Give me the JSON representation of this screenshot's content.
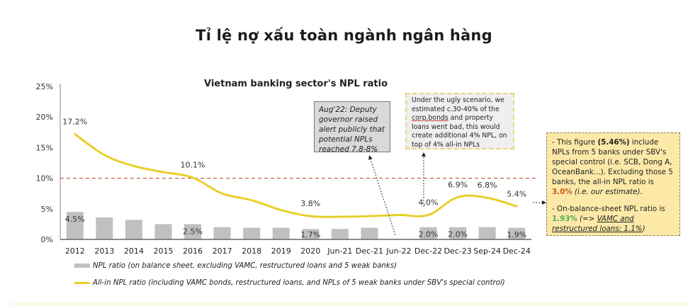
{
  "page_title": "Tỉ lệ nợ xấu toàn ngành ngân hàng",
  "chart_data": {
    "type": "bar+line",
    "title": "Vietnam banking sector's NPL ratio",
    "xlabel": "",
    "ylabel": "",
    "ylim": [
      0,
      25
    ],
    "yticks": [
      "0%",
      "5%",
      "10%",
      "15%",
      "20%",
      "25%"
    ],
    "categories": [
      "2012",
      "2013",
      "2014",
      "2015",
      "2016",
      "2017",
      "2018",
      "2019",
      "2020",
      "Jun-21",
      "Dec-21",
      "Jun-22",
      "Dec-22",
      "Dec-23",
      "Sep-24",
      "Dec-24"
    ],
    "series": [
      {
        "name": "NPL ratio (on balance sheet, excluding VAMC, restructured loans and 5 weak banks)",
        "type": "bar",
        "color": "#c0c0c0",
        "values": [
          4.5,
          3.6,
          3.2,
          2.5,
          2.5,
          2.0,
          1.9,
          1.9,
          1.7,
          1.7,
          1.9,
          null,
          2.0,
          2.0,
          2.0,
          1.9
        ],
        "data_labels": {
          "2012": "4.5%",
          "2016": "2.5%",
          "2020": "1.7%",
          "Dec-22": "2.0%",
          "Dec-23": "2.0%",
          "Dec-24": "1.9%"
        }
      },
      {
        "name": "All-in NPL ratio (including VAMC bonds, restructured loans, and NPLs of 5 weak banks under SBV's special control)",
        "type": "line",
        "color": "#e9cf2a",
        "values": [
          17.2,
          13.8,
          12.0,
          11.0,
          10.1,
          7.5,
          6.4,
          4.8,
          3.8,
          3.7,
          3.8,
          4.0,
          4.0,
          6.9,
          6.8,
          5.4
        ],
        "data_labels": {
          "2012": "17.2%",
          "2016": "10.1%",
          "2020": "3.8%",
          "Dec-22": "4.0%",
          "Dec-23": "6.9%",
          "Sep-24": "6.8%",
          "Dec-24": "5.4%"
        }
      }
    ],
    "reference_line": {
      "value": 10,
      "style": "dashed",
      "color": "#c0392b"
    },
    "grid": false,
    "legend_position": "bottom"
  },
  "annotations": {
    "aug22": "Aug'22: Deputy governor raised alert publicly that potential NPLs reached 7.8-8%",
    "ugly": {
      "pre": "Under the ugly scenario, we estimated c.30-40% of the ",
      "underlined": "corp.bonds",
      "post": " and property loans went bad, this would create additional 4% NPL, on top of 4% all-in NPLs"
    },
    "note": {
      "p1_a": "- This figure ",
      "p1_b": "(5.46%)",
      "p1_c": " include NPLs from 5 banks under SBV's special control (i.e. SCB, Dong A, OceanBank...). Excluding those 5 banks, the all-in NPL ratio is ",
      "p1_d": "3.0%",
      "p1_e": " (i.e. our estimate).",
      "p2_a": "- On-balance-sheet NPL ratio is ",
      "p2_b": "1.93%",
      "p2_c": " (=> ",
      "p2_d": "VAMC and restructured loans: 1.1%",
      "p2_e": ")"
    }
  },
  "legend": {
    "bar_label": "NPL ratio (on balance sheet, excluding VAMC, restructured loans and 5 weak banks)",
    "line_label": "All-in NPL ratio (including VAMC bonds, restructured loans, and NPLs of 5 weak banks under SBV's special control)"
  }
}
